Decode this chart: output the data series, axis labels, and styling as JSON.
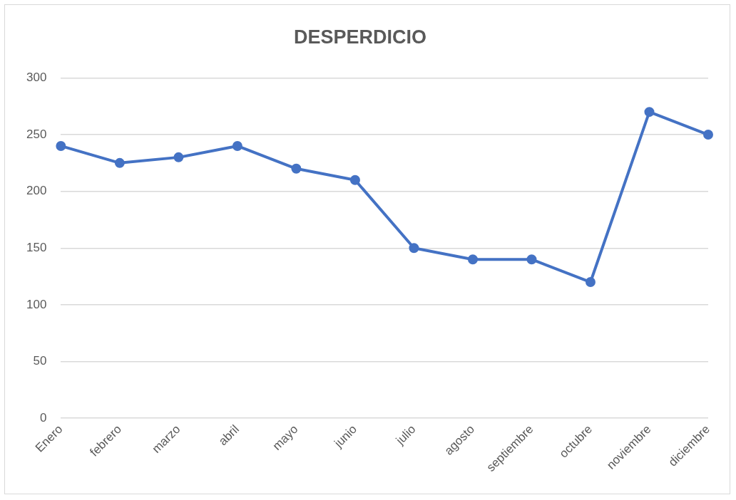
{
  "chart_data": {
    "type": "line",
    "title": "DESPERDICIO",
    "categories": [
      "Enero",
      "febrero",
      "marzo",
      "abril",
      "mayo",
      "junio",
      "julio",
      "agosto",
      "septiembre",
      "octubre",
      "noviembre",
      "diciembre"
    ],
    "series": [
      {
        "color": "#4472c4",
        "values": [
          240,
          225,
          230,
          240,
          220,
          210,
          150,
          140,
          140,
          120,
          270,
          250
        ]
      }
    ],
    "ylim": [
      0,
      300
    ],
    "yticks": [
      0,
      50,
      100,
      150,
      200,
      250,
      300
    ],
    "grid": "y",
    "legend": false,
    "marker": "circle",
    "line_style": "solid"
  }
}
